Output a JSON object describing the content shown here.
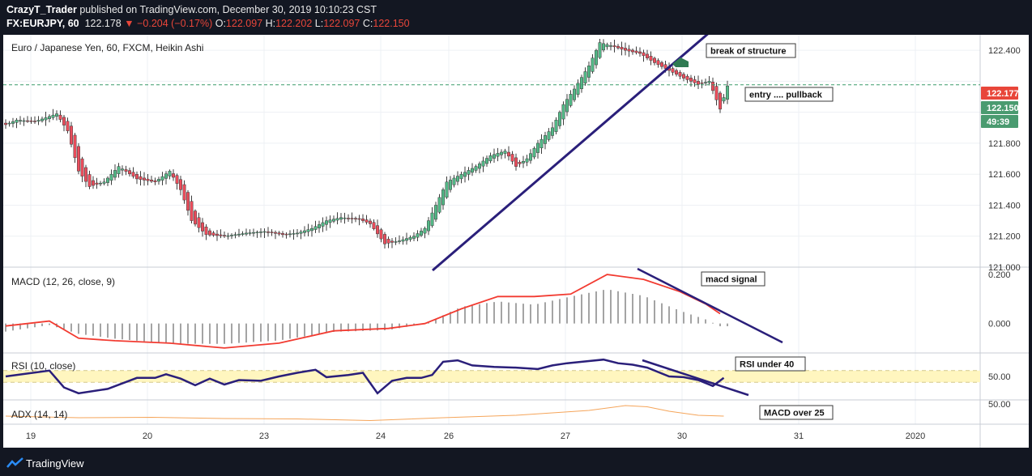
{
  "header": {
    "publisher": "CrazyT_Trader",
    "published_text": "published on TradingView.com, December 30, 2019 10:10:23 CST",
    "symbol": "FX:EURJPY, 60",
    "last": "122.178",
    "change": "−0.204 (−0.17%)",
    "open_label": "O:",
    "open": "122.097",
    "high_label": "H:",
    "high": "122.202",
    "low_label": "L:",
    "low": "122.097",
    "close_label": "C:",
    "close": "122.150"
  },
  "footer": {
    "brand": "TradingView"
  },
  "colors": {
    "up": "#53b987",
    "down": "#eb4d5c",
    "trend": "#2a1f7a",
    "macd": "#f23b31",
    "rsi": "#2a1f7a",
    "adx": "#f5a55a"
  },
  "chart_data": [
    {
      "type": "candlestick",
      "title": "Euro / Japanese Yen, 60, FXCM, Heikin Ashi",
      "ylim": [
        121.0,
        122.5
      ],
      "yticks": [
        "122.400",
        "121.800",
        "121.600",
        "121.400",
        "121.200",
        "121.000"
      ],
      "xticks": [
        "19",
        "20",
        "23",
        "24",
        "26",
        "27",
        "30",
        "31",
        "2020"
      ],
      "price_tags": [
        {
          "label": "122.177",
          "value": 122.177
        },
        {
          "label": "122.150",
          "value": 122.15
        },
        {
          "label": "49:39",
          "value": 122.095
        }
      ],
      "hline_value": 122.177,
      "close_path": [
        [
          0,
          121.92
        ],
        [
          3,
          121.95
        ],
        [
          8,
          121.94
        ],
        [
          14,
          121.99
        ],
        [
          17,
          121.88
        ],
        [
          20,
          121.62
        ],
        [
          23,
          121.52
        ],
        [
          27,
          121.55
        ],
        [
          31,
          121.65
        ],
        [
          36,
          121.57
        ],
        [
          41,
          121.55
        ],
        [
          45,
          121.62
        ],
        [
          48,
          121.5
        ],
        [
          51,
          121.3
        ],
        [
          55,
          121.21
        ],
        [
          60,
          121.2
        ],
        [
          66,
          121.22
        ],
        [
          71,
          121.23
        ],
        [
          76,
          121.21
        ],
        [
          80,
          121.22
        ],
        [
          84,
          121.25
        ],
        [
          88,
          121.3
        ],
        [
          92,
          121.32
        ],
        [
          97,
          121.31
        ],
        [
          100,
          121.28
        ],
        [
          104,
          121.15
        ],
        [
          108,
          121.17
        ],
        [
          112,
          121.2
        ],
        [
          115,
          121.25
        ],
        [
          118,
          121.4
        ],
        [
          121,
          121.55
        ],
        [
          125,
          121.6
        ],
        [
          129,
          121.65
        ],
        [
          133,
          121.72
        ],
        [
          137,
          121.75
        ],
        [
          140,
          121.65
        ],
        [
          143,
          121.7
        ],
        [
          146,
          121.8
        ],
        [
          150,
          121.9
        ],
        [
          153,
          122.05
        ],
        [
          156,
          122.15
        ],
        [
          160,
          122.3
        ],
        [
          163,
          122.45
        ],
        [
          166,
          122.43
        ],
        [
          170,
          122.4
        ],
        [
          174,
          122.38
        ],
        [
          178,
          122.32
        ],
        [
          182,
          122.27
        ],
        [
          186,
          122.22
        ],
        [
          190,
          122.18
        ],
        [
          193,
          122.2
        ],
        [
          196,
          122.02
        ],
        [
          198,
          122.17
        ]
      ],
      "annotations": [
        "break of structure",
        "entry .... pullback"
      ]
    },
    {
      "type": "line",
      "title": "MACD (12, 26, close, 9)",
      "ylim": [
        -0.12,
        0.23
      ],
      "yticks": [
        "0.200",
        "0.000"
      ],
      "macd": [
        [
          0,
          -0.03
        ],
        [
          12,
          0.0
        ],
        [
          20,
          -0.06
        ],
        [
          30,
          -0.08
        ],
        [
          45,
          -0.1
        ],
        [
          60,
          -0.11
        ],
        [
          75,
          -0.09
        ],
        [
          90,
          -0.04
        ],
        [
          105,
          -0.03
        ],
        [
          115,
          0.0
        ],
        [
          125,
          0.08
        ],
        [
          135,
          0.12
        ],
        [
          145,
          0.11
        ],
        [
          155,
          0.14
        ],
        [
          165,
          0.2
        ],
        [
          175,
          0.17
        ],
        [
          185,
          0.1
        ],
        [
          192,
          0.05
        ],
        [
          196,
          0.01
        ]
      ],
      "signal": [
        [
          0,
          -0.01
        ],
        [
          12,
          0.01
        ],
        [
          20,
          -0.06
        ],
        [
          30,
          -0.07
        ],
        [
          45,
          -0.08
        ],
        [
          60,
          -0.1
        ],
        [
          75,
          -0.08
        ],
        [
          90,
          -0.03
        ],
        [
          105,
          -0.02
        ],
        [
          115,
          0.0
        ],
        [
          125,
          0.06
        ],
        [
          135,
          0.11
        ],
        [
          145,
          0.11
        ],
        [
          155,
          0.12
        ],
        [
          165,
          0.2
        ],
        [
          175,
          0.18
        ],
        [
          185,
          0.13
        ],
        [
          192,
          0.08
        ],
        [
          196,
          0.04
        ]
      ],
      "annotations": [
        "macd signal"
      ]
    },
    {
      "type": "line",
      "title": "RSI (10, close)",
      "ylim": [
        18,
        82
      ],
      "yticks": [
        "50.00"
      ],
      "band": [
        42,
        58
      ],
      "rsi": [
        [
          0,
          50
        ],
        [
          12,
          58
        ],
        [
          16,
          35
        ],
        [
          20,
          27
        ],
        [
          28,
          33
        ],
        [
          36,
          48
        ],
        [
          41,
          48
        ],
        [
          44,
          53
        ],
        [
          48,
          47
        ],
        [
          52,
          38
        ],
        [
          56,
          47
        ],
        [
          60,
          39
        ],
        [
          64,
          45
        ],
        [
          70,
          44
        ],
        [
          75,
          50
        ],
        [
          80,
          55
        ],
        [
          85,
          59
        ],
        [
          88,
          49
        ],
        [
          94,
          52
        ],
        [
          98,
          55
        ],
        [
          102,
          27
        ],
        [
          106,
          44
        ],
        [
          110,
          48
        ],
        [
          114,
          48
        ],
        [
          117,
          52
        ],
        [
          120,
          70
        ],
        [
          124,
          72
        ],
        [
          128,
          65
        ],
        [
          134,
          63
        ],
        [
          140,
          62
        ],
        [
          146,
          60
        ],
        [
          150,
          65
        ],
        [
          154,
          68
        ],
        [
          160,
          71
        ],
        [
          164,
          73
        ],
        [
          168,
          68
        ],
        [
          172,
          66
        ],
        [
          176,
          62
        ],
        [
          182,
          50
        ],
        [
          186,
          49
        ],
        [
          190,
          45
        ],
        [
          194,
          37
        ],
        [
          197,
          48
        ]
      ],
      "annotations": [
        "RSI under 40"
      ]
    },
    {
      "type": "line",
      "title": "ADX (14, 14)",
      "ylim": [
        0,
        60
      ],
      "yticks": [
        "50.00"
      ],
      "adx": [
        [
          0,
          20
        ],
        [
          20,
          16
        ],
        [
          40,
          17
        ],
        [
          60,
          14
        ],
        [
          80,
          13
        ],
        [
          100,
          9
        ],
        [
          120,
          16
        ],
        [
          140,
          22
        ],
        [
          160,
          34
        ],
        [
          170,
          46
        ],
        [
          176,
          43
        ],
        [
          182,
          32
        ],
        [
          190,
          22
        ],
        [
          197,
          20
        ]
      ],
      "annotations": [
        "MACD over 25"
      ]
    }
  ]
}
